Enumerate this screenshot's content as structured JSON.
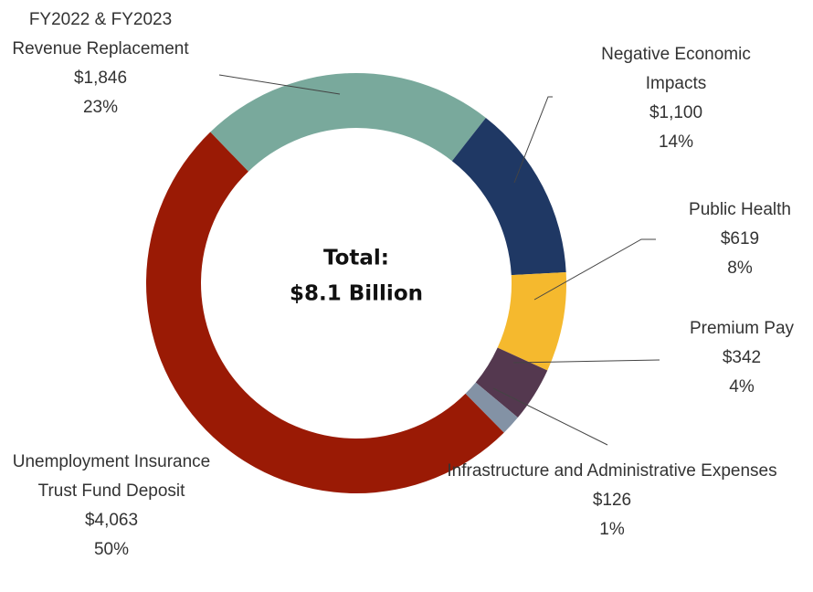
{
  "chart_data": {
    "type": "donut",
    "center_label": [
      "Total:",
      "$8.1 Billion"
    ],
    "categories": [
      "FY2022 & FY2023 Revenue Replacement",
      "Negative Economic Impacts",
      "Public Health",
      "Premium Pay",
      "Infrastructure and Administrative Expenses",
      "Unemployment Insurance Trust Fund Deposit"
    ],
    "values": [
      1846,
      1100,
      619,
      342,
      126,
      4063
    ],
    "value_labels": [
      "$1,846",
      "$1,100",
      "$619",
      "$342",
      "$126",
      "$4,063"
    ],
    "percent_labels": [
      "23%",
      "14%",
      "8%",
      "4%",
      "1%",
      "50%"
    ],
    "colors": [
      "#79a99c",
      "#1f3864",
      "#f5b92e",
      "#54384f",
      "#8392a5",
      "#9a1a05"
    ]
  }
}
